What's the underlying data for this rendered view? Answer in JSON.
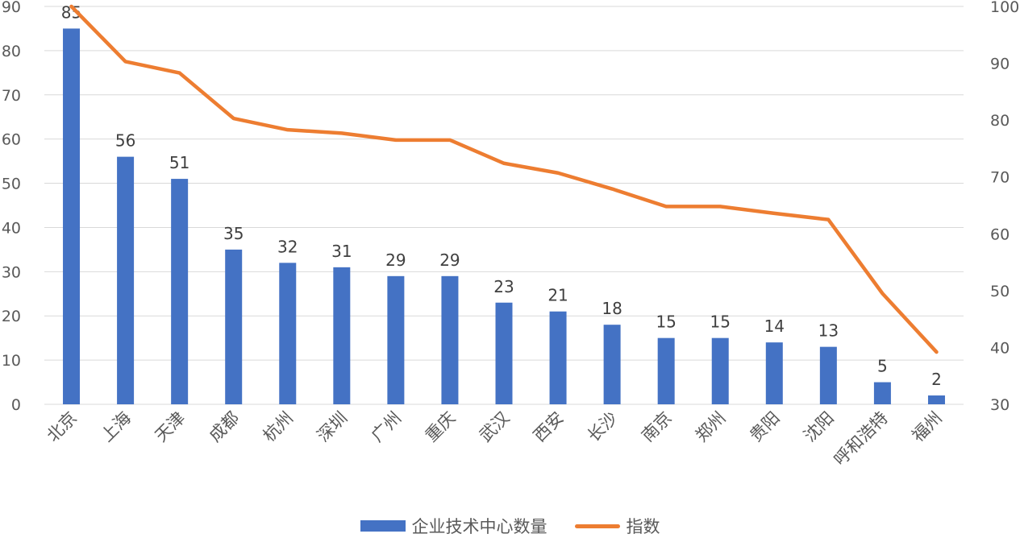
{
  "chart_data": {
    "type": "bar",
    "categories": [
      "北京",
      "上海",
      "天津",
      "成都",
      "杭州",
      "深圳",
      "广州",
      "重庆",
      "武汉",
      "西安",
      "长沙",
      "南京",
      "郑州",
      "贵阳",
      "沈阳",
      "呼和浩特",
      "福州"
    ],
    "series": [
      {
        "name": "企业技术中心数量",
        "type": "bar",
        "axis": "left",
        "color": "#4472C4",
        "values": [
          85,
          56,
          51,
          35,
          32,
          31,
          29,
          29,
          23,
          21,
          18,
          15,
          15,
          14,
          13,
          5,
          2
        ],
        "data_labels": [
          "85",
          "56",
          "51",
          "35",
          "32",
          "31",
          "29",
          "29",
          "23",
          "21",
          "18",
          "15",
          "15",
          "14",
          "13",
          "5",
          "2"
        ]
      },
      {
        "name": "指数",
        "type": "line",
        "axis": "right",
        "color": "#ED7D31",
        "values": [
          100,
          90.3,
          88.3,
          80.3,
          78.3,
          77.7,
          76.5,
          76.5,
          72.4,
          70.7,
          67.9,
          64.8,
          64.8,
          63.6,
          62.5,
          49.5,
          39.2
        ]
      }
    ],
    "y_left": {
      "ylim": [
        0,
        90
      ],
      "ticks": [
        "0",
        "10",
        "20",
        "30",
        "40",
        "50",
        "60",
        "70",
        "80",
        "90"
      ]
    },
    "y_right": {
      "ylim": [
        30,
        100
      ],
      "ticks": [
        "30",
        "40",
        "50",
        "60",
        "70",
        "80",
        "90",
        "100"
      ]
    },
    "grid": true,
    "legend_position": "bottom"
  }
}
